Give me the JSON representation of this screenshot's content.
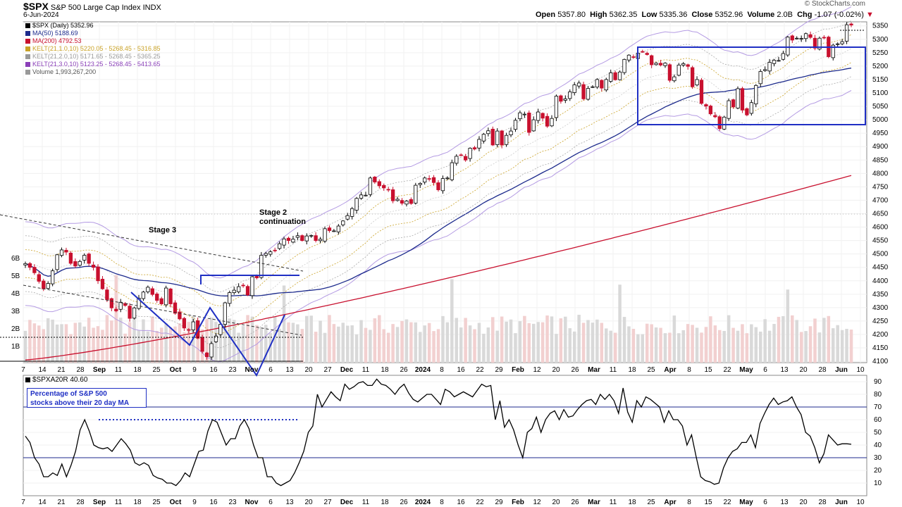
{
  "header": {
    "ticker": "$SPX",
    "name": "S&P 500 Large Cap Index",
    "exchange": "INDX",
    "date": "6-Jun-2024",
    "open_label": "Open",
    "open": "5357.80",
    "high_label": "High",
    "high": "5362.35",
    "low_label": "Low",
    "low": "5335.36",
    "close_label": "Close",
    "close": "5352.96",
    "volume_label": "Volume",
    "volume": "2.0B",
    "chg_label": "Chg",
    "chg": "-1.07 (-0.02%)",
    "watermark": "© StockCharts.com"
  },
  "legend": [
    {
      "text": "$SPX (Daily) 5352.96",
      "color": "#000000"
    },
    {
      "text": "MA(50) 5188.69",
      "color": "#1c2a8c"
    },
    {
      "text": "MA(200) 4792.53",
      "color": "#c8102e"
    },
    {
      "text": "KELT(21,1.0,10) 5220.05 - 5268.45 - 5316.85",
      "color": "#c9a227"
    },
    {
      "text": "KELT(21,2.0,10) 5171.65 - 5268.45 - 5365.25",
      "color": "#999999"
    },
    {
      "text": "KELT(21,3.0,10) 5123.25 - 5268.45 - 5413.65",
      "color": "#8a3fb8"
    },
    {
      "text": "Volume 1,993,267,200",
      "color": "#777777"
    }
  ],
  "annotations": {
    "stage3": "Stage 3",
    "stage2_line1": "Stage 2",
    "stage2_line2": "continuation",
    "breadth_box_line1": "Percentage of S&P 500",
    "breadth_box_line2": "stocks above their 20 day MA"
  },
  "lower_panel": {
    "label": "$SPXA20R 40.60"
  },
  "colors": {
    "up": "#000000",
    "down": "#c8102e",
    "ma50": "#1c2a8c",
    "ma200": "#c8102e",
    "kelt1": "#c9a227",
    "kelt2": "#aaaaaa",
    "kelt3": "#b49be3",
    "annotation": "#1f2fc4",
    "volume_up": "#d9d9d9",
    "volume_down": "#f2d0d0"
  },
  "chart_data": [
    {
      "type": "line",
      "title": "$SPX S&P 500 Large Cap Index (Daily)",
      "x_ticks": [
        "7",
        "14",
        "21",
        "28",
        "Sep",
        "11",
        "18",
        "25",
        "Oct",
        "9",
        "16",
        "23",
        "Nov",
        "6",
        "13",
        "20",
        "27",
        "Dec",
        "11",
        "18",
        "26",
        "2024",
        "8",
        "16",
        "22",
        "29",
        "Feb",
        "12",
        "20",
        "26",
        "Mar",
        "11",
        "18",
        "25",
        "Apr",
        "8",
        "15",
        "22",
        "May",
        "6",
        "13",
        "20",
        "28",
        "Jun",
        "10"
      ],
      "y_ticks": [
        4100,
        4150,
        4200,
        4250,
        4300,
        4350,
        4400,
        4450,
        4500,
        4550,
        4600,
        4650,
        4700,
        4750,
        4800,
        4850,
        4900,
        4950,
        5000,
        5050,
        5100,
        5150,
        5200,
        5250,
        5300,
        5350
      ],
      "ylim": [
        4095,
        5365
      ],
      "volume_ticks": [
        "1B",
        "2B",
        "3B",
        "4B",
        "5B",
        "6B"
      ],
      "series": [
        {
          "name": "$SPX",
          "values": [
            4464,
            4450,
            4430,
            4398,
            4370,
            4390,
            4437,
            4497,
            4515,
            4507,
            4465,
            4455,
            4472,
            4495,
            4465,
            4450,
            4400,
            4370,
            4330,
            4299,
            4288,
            4320,
            4308,
            4260,
            4299,
            4335,
            4358,
            4376,
            4349,
            4327,
            4314,
            4373,
            4314,
            4279,
            4258,
            4224,
            4217,
            4247,
            4186,
            4137,
            4117,
            4166,
            4194,
            4238,
            4318,
            4356,
            4365,
            4378,
            4382,
            4347,
            4415,
            4411,
            4495,
            4502,
            4508,
            4514,
            4538,
            4556,
            4550,
            4555,
            4568,
            4550,
            4567,
            4569,
            4550,
            4555,
            4594,
            4587,
            4586,
            4604,
            4623,
            4643,
            4669,
            4707,
            4720,
            4719,
            4783,
            4768,
            4754,
            4746,
            4740,
            4698,
            4704,
            4689,
            4697,
            4688,
            4756,
            4763,
            4783,
            4780,
            4766,
            4739,
            4781,
            4783,
            4840,
            4864,
            4868,
            4850,
            4894,
            4891,
            4927,
            4946,
            4959,
            4906,
            4958,
            4906,
            4942,
            4958,
            4998,
            5026,
            5021,
            4953,
            5000,
            5029,
            5006,
            4976,
            5005,
            5088,
            5069,
            5078,
            5104,
            5130,
            5137,
            5078,
            5117,
            5123,
            5150,
            5118,
            5150,
            5175,
            5149,
            5178,
            5225,
            5241,
            5234,
            5248,
            5254,
            5243,
            5205,
            5211,
            5204,
            5211,
            5147,
            5160,
            5204,
            5209,
            5199,
            5123,
            5150,
            5061,
            5051,
            5022,
            5011,
            4967,
            5010,
            5071,
            5048,
            5116,
            5036,
            5018,
            5064,
            5128,
            5180,
            5187,
            5214,
            5222,
            5221,
            5247,
            5308,
            5297,
            5304,
            5303,
            5321,
            5307,
            5267,
            5304,
            5306,
            5235,
            5278,
            5283,
            5291,
            5354,
            5353
          ]
        },
        {
          "name": "MA(50)"
        },
        {
          "name": "MA(200)"
        }
      ]
    },
    {
      "type": "line",
      "title": "$SPXA20R",
      "ylim": [
        0,
        95
      ],
      "y_ticks": [
        10,
        20,
        30,
        40,
        50,
        60,
        70,
        80,
        90
      ],
      "reference_lines": [
        30,
        70
      ],
      "series": [
        {
          "name": "$SPXA20R",
          "values": [
            47,
            42,
            30,
            25,
            15,
            15,
            18,
            16,
            25,
            15,
            24,
            35,
            52,
            60,
            51,
            40,
            38,
            37,
            38,
            35,
            40,
            45,
            41,
            36,
            26,
            24,
            26,
            24,
            16,
            14,
            13,
            10,
            10,
            8,
            12,
            18,
            15,
            25,
            35,
            36,
            51,
            60,
            58,
            49,
            40,
            45,
            45,
            55,
            60,
            53,
            40,
            30,
            30,
            15,
            15,
            10,
            8,
            10,
            12,
            18,
            26,
            35,
            50,
            55,
            80,
            70,
            76,
            82,
            78,
            75,
            88,
            84,
            86,
            89,
            90,
            87,
            87,
            92,
            88,
            87,
            84,
            80,
            85,
            88,
            81,
            76,
            74,
            77,
            80,
            80,
            76,
            72,
            84,
            82,
            78,
            80,
            82,
            80,
            78,
            83,
            88,
            86,
            87,
            60,
            75,
            54,
            60,
            52,
            40,
            30,
            50,
            53,
            62,
            50,
            60,
            65,
            67,
            60,
            68,
            62,
            63,
            68,
            72,
            75,
            76,
            72,
            80,
            76,
            80,
            75,
            65,
            85,
            66,
            58,
            75,
            70,
            78,
            76,
            73,
            70,
            58,
            67,
            60,
            60,
            55,
            40,
            48,
            31,
            15,
            12,
            11,
            9,
            10,
            22,
            30,
            35,
            37,
            42,
            42,
            48,
            38,
            57,
            65,
            72,
            77,
            72,
            74,
            75,
            78,
            70,
            64,
            50,
            47,
            38,
            26,
            33,
            48,
            44,
            40,
            41,
            41,
            40.6
          ]
        }
      ]
    }
  ]
}
